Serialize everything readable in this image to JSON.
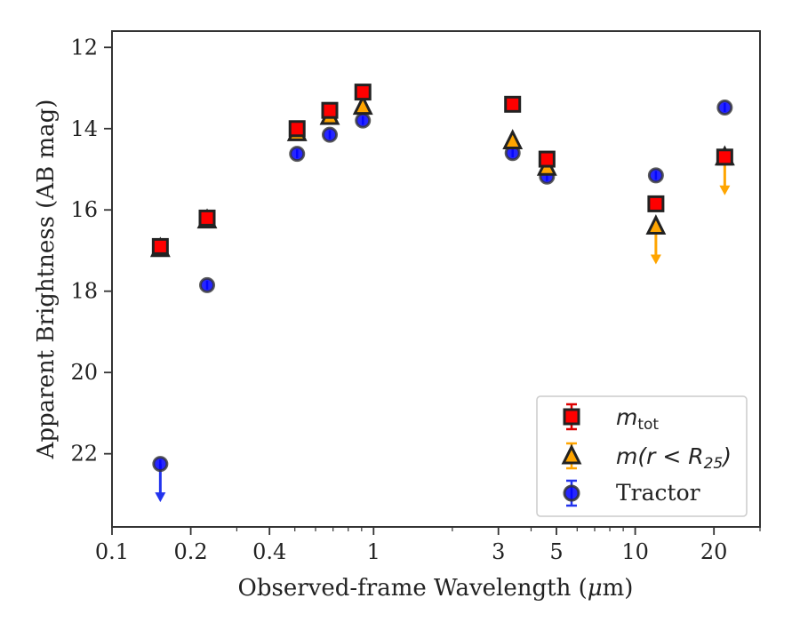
{
  "chart_data": {
    "type": "scatter",
    "title": "",
    "xlabel_main": "Observed-frame Wavelength (",
    "xlabel_mu": "μ",
    "xlabel_tail": "m)",
    "ylabel": "Apparent Brightness (AB mag)",
    "xscale": "log",
    "xlim": [
      0.1,
      30
    ],
    "ylim": [
      23.8,
      11.6
    ],
    "y_inverted": true,
    "grid": false,
    "legend_position": "lower-right",
    "x_ticks": [
      {
        "value": 0.1,
        "label": "0.1"
      },
      {
        "value": 0.2,
        "label": "0.2"
      },
      {
        "value": 0.4,
        "label": "0.4"
      },
      {
        "value": 1,
        "label": "1"
      },
      {
        "value": 3,
        "label": "3"
      },
      {
        "value": 5,
        "label": "5"
      },
      {
        "value": 10,
        "label": "10"
      },
      {
        "value": 20,
        "label": "20"
      }
    ],
    "y_ticks": [
      {
        "value": 12,
        "label": "12"
      },
      {
        "value": 14,
        "label": "14"
      },
      {
        "value": 16,
        "label": "16"
      },
      {
        "value": 18,
        "label": "18"
      },
      {
        "value": 20,
        "label": "20"
      },
      {
        "value": 22,
        "label": "22"
      }
    ],
    "series": [
      {
        "key": "mtot",
        "legend_main": "m",
        "legend_sub": "tot",
        "marker": "square",
        "fill": "#ff0000",
        "error_color": "#dd0000",
        "points": [
          {
            "x": 0.153,
            "y": 16.9
          },
          {
            "x": 0.231,
            "y": 16.2
          },
          {
            "x": 0.51,
            "y": 14.0
          },
          {
            "x": 0.68,
            "y": 13.55
          },
          {
            "x": 0.91,
            "y": 13.1
          },
          {
            "x": 3.4,
            "y": 13.4
          },
          {
            "x": 4.6,
            "y": 14.75
          },
          {
            "x": 12.0,
            "y": 15.85
          },
          {
            "x": 22.0,
            "y": 14.7
          }
        ]
      },
      {
        "key": "mr25",
        "legend_main": "m",
        "legend_paren_open": "(r < R",
        "legend_sub": "25",
        "legend_paren_close": ")",
        "marker": "triangle",
        "fill": "#ffa500",
        "error_color": "#ffa500",
        "points": [
          {
            "x": 0.153,
            "y": 16.95
          },
          {
            "x": 0.231,
            "y": 16.25
          },
          {
            "x": 0.51,
            "y": 14.1
          },
          {
            "x": 0.68,
            "y": 13.7
          },
          {
            "x": 0.91,
            "y": 13.45
          },
          {
            "x": 3.4,
            "y": 14.3
          },
          {
            "x": 4.6,
            "y": 14.95
          },
          {
            "x": 12.0,
            "y": 16.4,
            "upper_limit": true
          },
          {
            "x": 22.0,
            "y": 14.7,
            "upper_limit": true
          }
        ]
      },
      {
        "key": "tractor",
        "legend_main": "Tractor",
        "marker": "circle",
        "fill": "#0000ff",
        "error_color": "#2233ee",
        "points": [
          {
            "x": 0.153,
            "y": 22.25,
            "upper_limit": true
          },
          {
            "x": 0.231,
            "y": 17.85
          },
          {
            "x": 0.51,
            "y": 14.62
          },
          {
            "x": 0.68,
            "y": 14.15
          },
          {
            "x": 0.91,
            "y": 13.8
          },
          {
            "x": 3.4,
            "y": 14.6
          },
          {
            "x": 4.6,
            "y": 15.18
          },
          {
            "x": 12.0,
            "y": 15.15
          },
          {
            "x": 22.0,
            "y": 13.48
          }
        ]
      }
    ]
  }
}
